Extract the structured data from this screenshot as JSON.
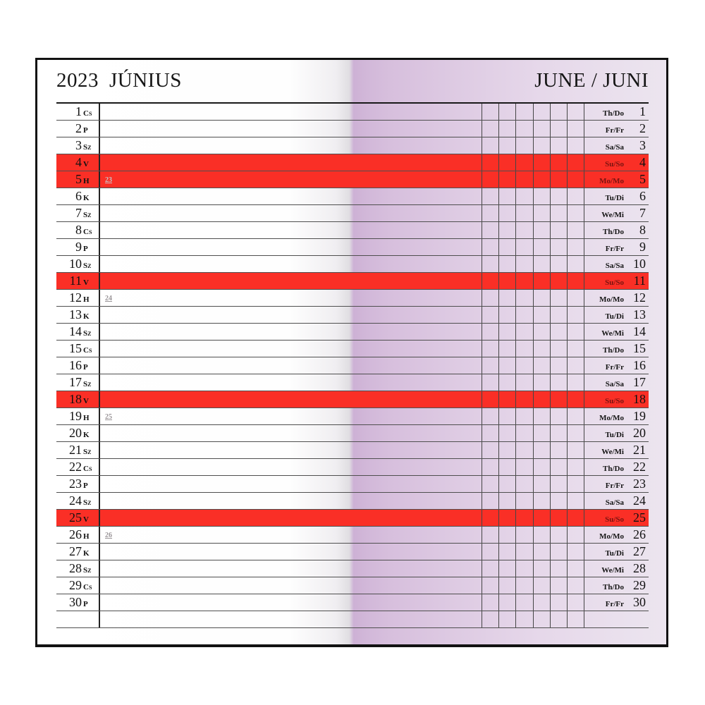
{
  "header": {
    "year": "2023",
    "month_local": "JÚNIUS",
    "month_en_de": "JUNE / JUNI"
  },
  "colors": {
    "holiday_row_red": "#fa2f26",
    "holiday_label_dark_red": "#7b1410",
    "page_fold_lavender": "#d7bfdd",
    "grid_line": "#4f4f4f",
    "text": "#111111"
  },
  "rows": [
    {
      "day": "1",
      "abbr_hu": "Cs",
      "abbr_en_de": "Th/Do",
      "holiday": false,
      "week": ""
    },
    {
      "day": "2",
      "abbr_hu": "P",
      "abbr_en_de": "Fr/Fr",
      "holiday": false,
      "week": ""
    },
    {
      "day": "3",
      "abbr_hu": "Sz",
      "abbr_en_de": "Sa/Sa",
      "holiday": false,
      "week": ""
    },
    {
      "day": "4",
      "abbr_hu": "V",
      "abbr_en_de": "Su/So",
      "holiday": true,
      "week": ""
    },
    {
      "day": "5",
      "abbr_hu": "H",
      "abbr_en_de": "Mo/Mo",
      "holiday": true,
      "week": "23"
    },
    {
      "day": "6",
      "abbr_hu": "K",
      "abbr_en_de": "Tu/Di",
      "holiday": false,
      "week": ""
    },
    {
      "day": "7",
      "abbr_hu": "Sz",
      "abbr_en_de": "We/Mi",
      "holiday": false,
      "week": ""
    },
    {
      "day": "8",
      "abbr_hu": "Cs",
      "abbr_en_de": "Th/Do",
      "holiday": false,
      "week": ""
    },
    {
      "day": "9",
      "abbr_hu": "P",
      "abbr_en_de": "Fr/Fr",
      "holiday": false,
      "week": ""
    },
    {
      "day": "10",
      "abbr_hu": "Sz",
      "abbr_en_de": "Sa/Sa",
      "holiday": false,
      "week": ""
    },
    {
      "day": "11",
      "abbr_hu": "V",
      "abbr_en_de": "Su/So",
      "holiday": true,
      "week": ""
    },
    {
      "day": "12",
      "abbr_hu": "H",
      "abbr_en_de": "Mo/Mo",
      "holiday": false,
      "week": "24"
    },
    {
      "day": "13",
      "abbr_hu": "K",
      "abbr_en_de": "Tu/Di",
      "holiday": false,
      "week": ""
    },
    {
      "day": "14",
      "abbr_hu": "Sz",
      "abbr_en_de": "We/Mi",
      "holiday": false,
      "week": ""
    },
    {
      "day": "15",
      "abbr_hu": "Cs",
      "abbr_en_de": "Th/Do",
      "holiday": false,
      "week": ""
    },
    {
      "day": "16",
      "abbr_hu": "P",
      "abbr_en_de": "Fr/Fr",
      "holiday": false,
      "week": ""
    },
    {
      "day": "17",
      "abbr_hu": "Sz",
      "abbr_en_de": "Sa/Sa",
      "holiday": false,
      "week": ""
    },
    {
      "day": "18",
      "abbr_hu": "V",
      "abbr_en_de": "Su/So",
      "holiday": true,
      "week": ""
    },
    {
      "day": "19",
      "abbr_hu": "H",
      "abbr_en_de": "Mo/Mo",
      "holiday": false,
      "week": "25"
    },
    {
      "day": "20",
      "abbr_hu": "K",
      "abbr_en_de": "Tu/Di",
      "holiday": false,
      "week": ""
    },
    {
      "day": "21",
      "abbr_hu": "Sz",
      "abbr_en_de": "We/Mi",
      "holiday": false,
      "week": ""
    },
    {
      "day": "22",
      "abbr_hu": "Cs",
      "abbr_en_de": "Th/Do",
      "holiday": false,
      "week": ""
    },
    {
      "day": "23",
      "abbr_hu": "P",
      "abbr_en_de": "Fr/Fr",
      "holiday": false,
      "week": ""
    },
    {
      "day": "24",
      "abbr_hu": "Sz",
      "abbr_en_de": "Sa/Sa",
      "holiday": false,
      "week": ""
    },
    {
      "day": "25",
      "abbr_hu": "V",
      "abbr_en_de": "Su/So",
      "holiday": true,
      "week": ""
    },
    {
      "day": "26",
      "abbr_hu": "H",
      "abbr_en_de": "Mo/Mo",
      "holiday": false,
      "week": "26"
    },
    {
      "day": "27",
      "abbr_hu": "K",
      "abbr_en_de": "Tu/Di",
      "holiday": false,
      "week": ""
    },
    {
      "day": "28",
      "abbr_hu": "Sz",
      "abbr_en_de": "We/Mi",
      "holiday": false,
      "week": ""
    },
    {
      "day": "29",
      "abbr_hu": "Cs",
      "abbr_en_de": "Th/Do",
      "holiday": false,
      "week": ""
    },
    {
      "day": "30",
      "abbr_hu": "P",
      "abbr_en_de": "Fr/Fr",
      "holiday": false,
      "week": ""
    },
    {
      "day": "",
      "abbr_hu": "",
      "abbr_en_de": "",
      "holiday": false,
      "week": ""
    }
  ]
}
